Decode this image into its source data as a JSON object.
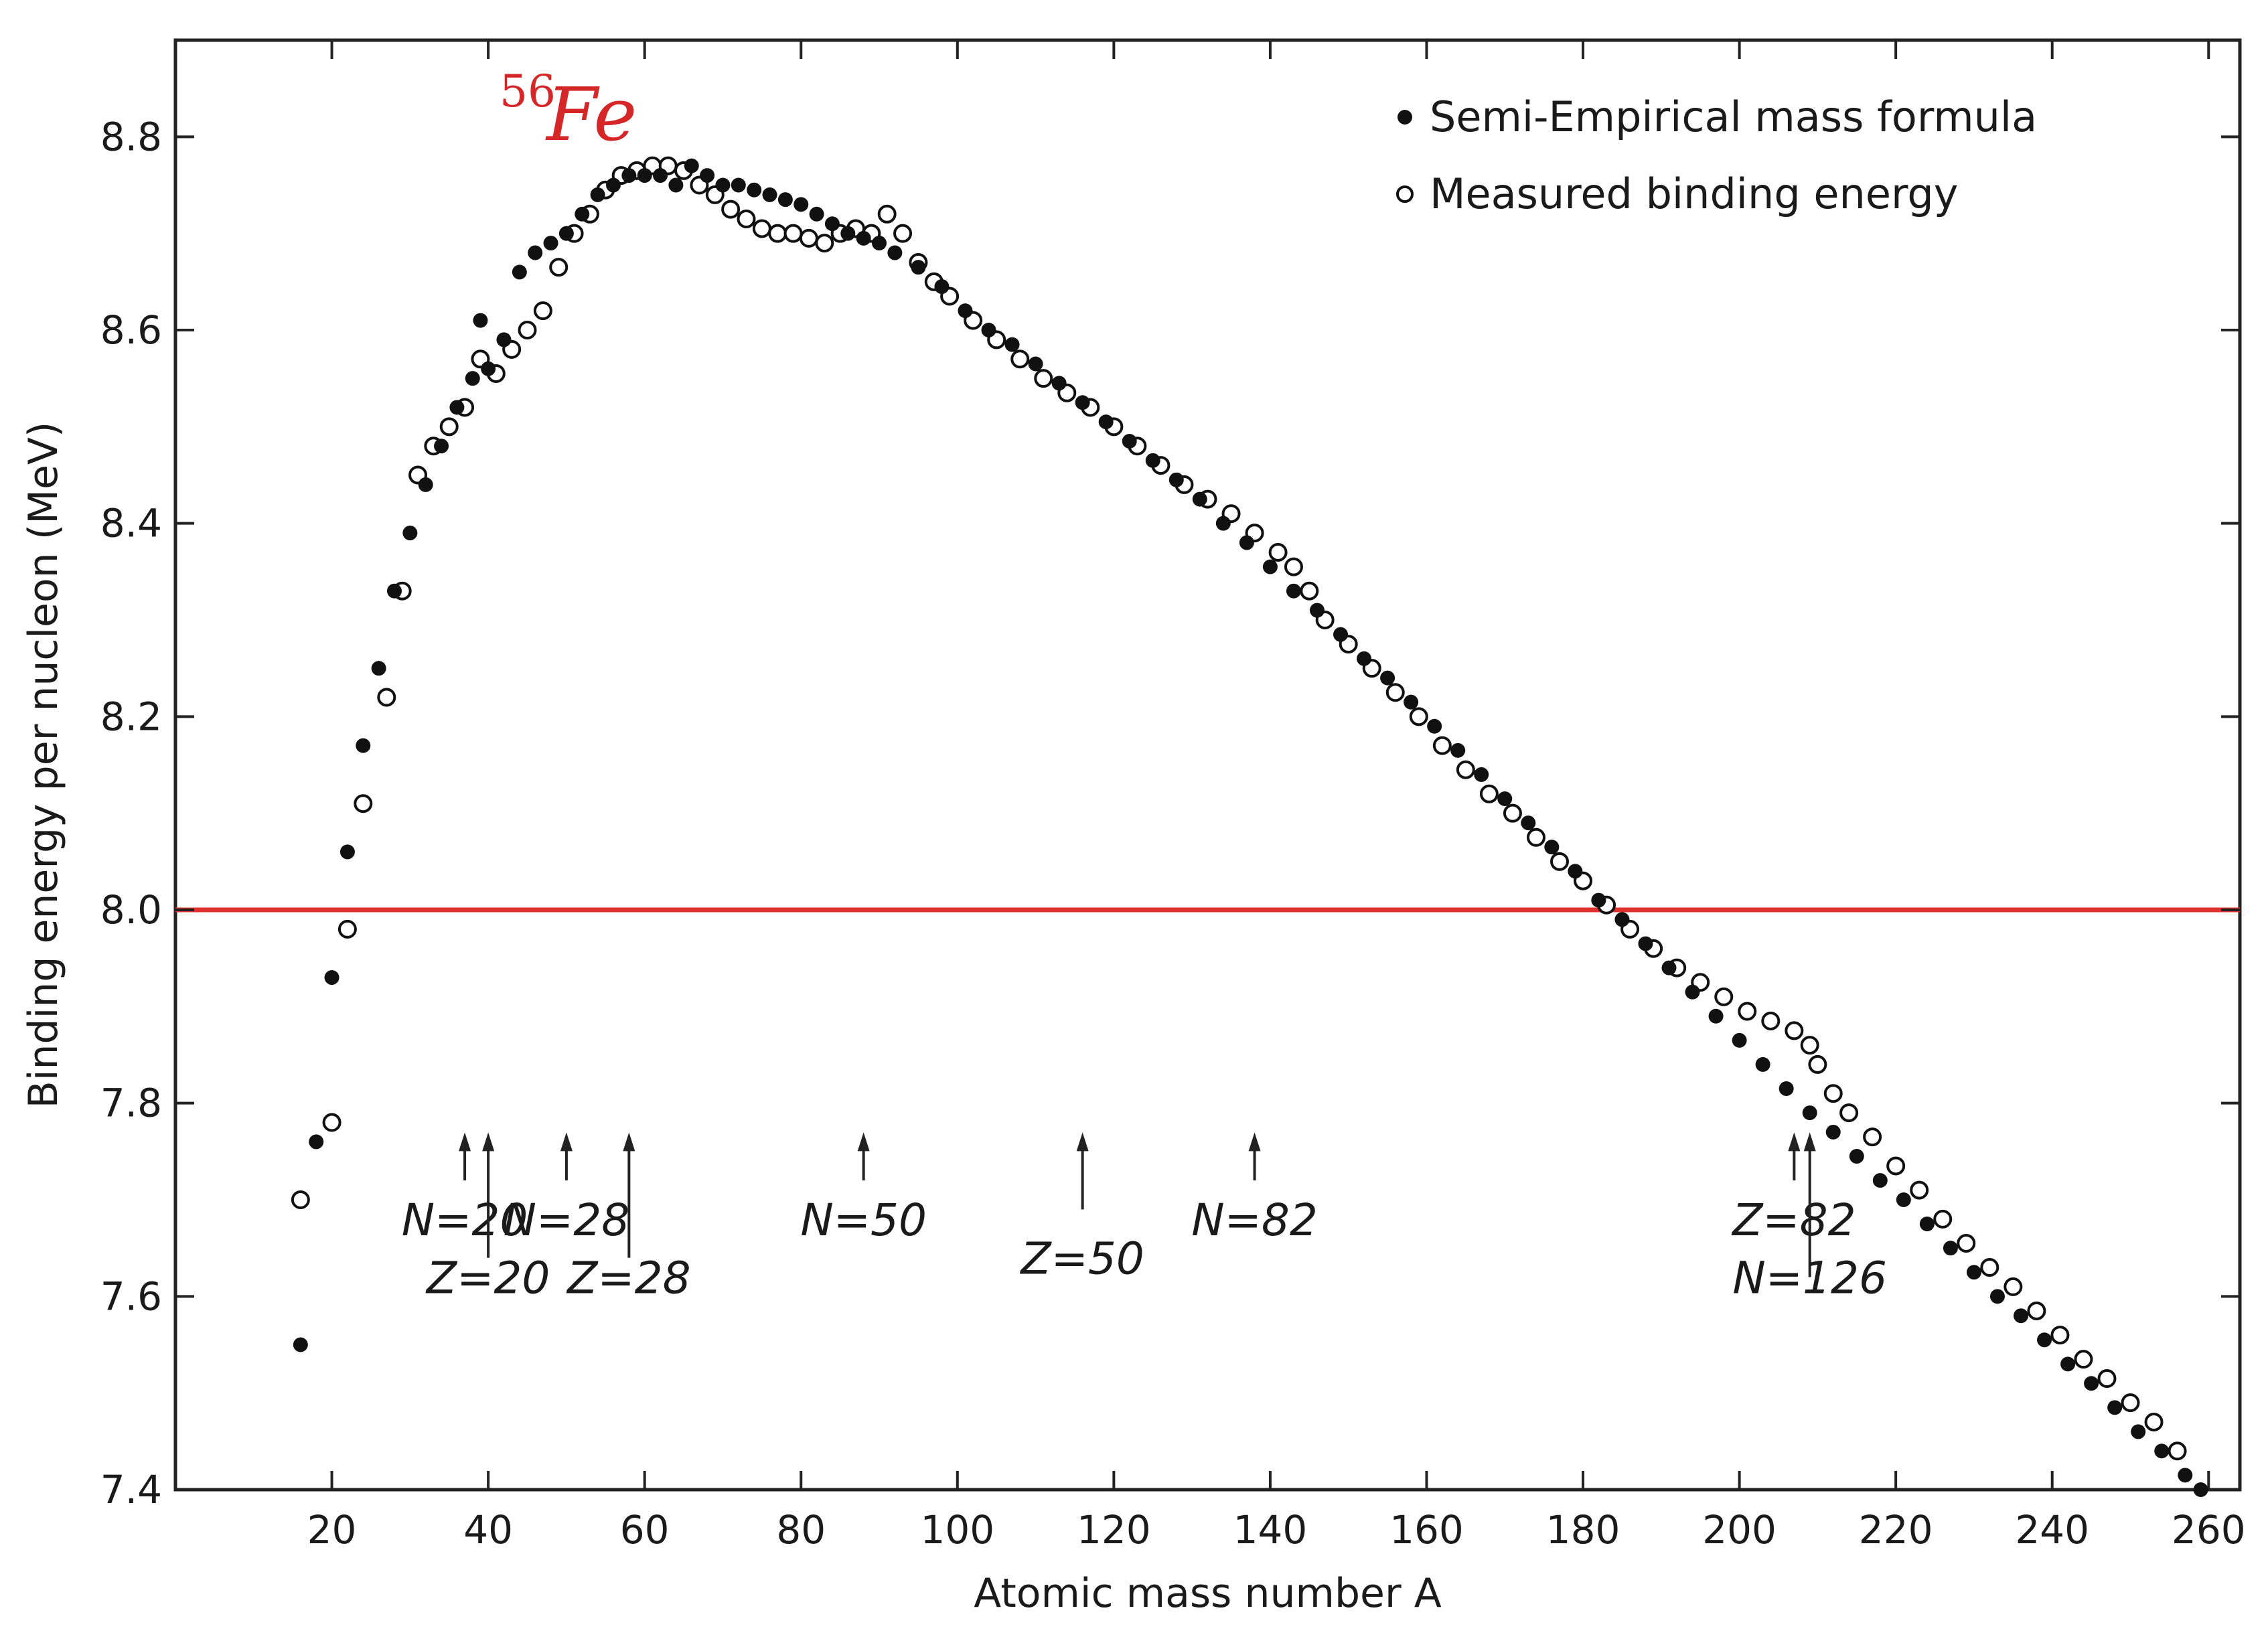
{
  "chart_data": {
    "type": "scatter",
    "title": "",
    "xlabel": "Atomic mass number A",
    "ylabel": "Binding energy per nucleon (MeV)",
    "xlim": [
      0,
      264
    ],
    "ylim": [
      7.4,
      8.9
    ],
    "x_ticks": [
      20,
      40,
      60,
      80,
      100,
      120,
      140,
      160,
      180,
      200,
      220,
      240,
      260
    ],
    "y_ticks": [
      7.4,
      7.6,
      7.8,
      8.0,
      8.2,
      8.4,
      8.6,
      8.8
    ],
    "grid": false,
    "legend_position": "top-right",
    "reference_line": {
      "y": 8.0,
      "color": "#e03030"
    },
    "annotation": {
      "mass_number": "56",
      "element": "Fe",
      "x": 56,
      "y": 8.79,
      "color": "#d62728"
    },
    "series": [
      {
        "name": "Semi-Empirical mass formula",
        "marker": "filled",
        "points": [
          [
            16,
            7.55
          ],
          [
            18,
            7.76
          ],
          [
            20,
            7.93
          ],
          [
            22,
            8.06
          ],
          [
            24,
            8.17
          ],
          [
            26,
            8.25
          ],
          [
            28,
            8.33
          ],
          [
            30,
            8.39
          ],
          [
            32,
            8.44
          ],
          [
            34,
            8.48
          ],
          [
            36,
            8.52
          ],
          [
            38,
            8.55
          ],
          [
            39,
            8.61
          ],
          [
            40,
            8.56
          ],
          [
            42,
            8.59
          ],
          [
            44,
            8.66
          ],
          [
            46,
            8.68
          ],
          [
            48,
            8.69
          ],
          [
            50,
            8.7
          ],
          [
            52,
            8.72
          ],
          [
            54,
            8.74
          ],
          [
            56,
            8.75
          ],
          [
            58,
            8.76
          ],
          [
            60,
            8.76
          ],
          [
            62,
            8.76
          ],
          [
            64,
            8.75
          ],
          [
            66,
            8.77
          ],
          [
            68,
            8.76
          ],
          [
            70,
            8.75
          ],
          [
            72,
            8.75
          ],
          [
            74,
            8.745
          ],
          [
            76,
            8.74
          ],
          [
            78,
            8.735
          ],
          [
            80,
            8.73
          ],
          [
            82,
            8.72
          ],
          [
            84,
            8.71
          ],
          [
            86,
            8.7
          ],
          [
            88,
            8.695
          ],
          [
            90,
            8.69
          ],
          [
            92,
            8.68
          ],
          [
            95,
            8.665
          ],
          [
            98,
            8.645
          ],
          [
            101,
            8.62
          ],
          [
            104,
            8.6
          ],
          [
            107,
            8.585
          ],
          [
            110,
            8.565
          ],
          [
            113,
            8.545
          ],
          [
            116,
            8.525
          ],
          [
            119,
            8.505
          ],
          [
            122,
            8.485
          ],
          [
            125,
            8.465
          ],
          [
            128,
            8.445
          ],
          [
            131,
            8.425
          ],
          [
            134,
            8.4
          ],
          [
            137,
            8.38
          ],
          [
            140,
            8.355
          ],
          [
            143,
            8.33
          ],
          [
            146,
            8.31
          ],
          [
            149,
            8.285
          ],
          [
            152,
            8.26
          ],
          [
            155,
            8.24
          ],
          [
            158,
            8.215
          ],
          [
            161,
            8.19
          ],
          [
            164,
            8.165
          ],
          [
            167,
            8.14
          ],
          [
            170,
            8.115
          ],
          [
            173,
            8.09
          ],
          [
            176,
            8.065
          ],
          [
            179,
            8.04
          ],
          [
            182,
            8.01
          ],
          [
            185,
            7.99
          ],
          [
            188,
            7.965
          ],
          [
            191,
            7.94
          ],
          [
            194,
            7.915
          ],
          [
            197,
            7.89
          ],
          [
            200,
            7.865
          ],
          [
            203,
            7.84
          ],
          [
            206,
            7.815
          ],
          [
            209,
            7.79
          ],
          [
            212,
            7.77
          ],
          [
            215,
            7.745
          ],
          [
            218,
            7.72
          ],
          [
            221,
            7.7
          ],
          [
            224,
            7.675
          ],
          [
            227,
            7.65
          ],
          [
            230,
            7.625
          ],
          [
            233,
            7.6
          ],
          [
            236,
            7.58
          ],
          [
            239,
            7.555
          ],
          [
            242,
            7.53
          ],
          [
            245,
            7.51
          ],
          [
            248,
            7.485
          ],
          [
            251,
            7.46
          ],
          [
            254,
            7.44
          ],
          [
            257,
            7.415
          ],
          [
            259,
            7.4
          ]
        ]
      },
      {
        "name": "Measured binding energy",
        "marker": "open",
        "points": [
          [
            16,
            7.7
          ],
          [
            20,
            7.78
          ],
          [
            22,
            7.98
          ],
          [
            24,
            8.11
          ],
          [
            27,
            8.22
          ],
          [
            29,
            8.33
          ],
          [
            31,
            8.45
          ],
          [
            33,
            8.48
          ],
          [
            35,
            8.5
          ],
          [
            37,
            8.52
          ],
          [
            39,
            8.57
          ],
          [
            41,
            8.555
          ],
          [
            43,
            8.58
          ],
          [
            45,
            8.6
          ],
          [
            47,
            8.62
          ],
          [
            49,
            8.665
          ],
          [
            51,
            8.7
          ],
          [
            53,
            8.72
          ],
          [
            55,
            8.745
          ],
          [
            57,
            8.76
          ],
          [
            59,
            8.765
          ],
          [
            61,
            8.77
          ],
          [
            63,
            8.77
          ],
          [
            65,
            8.765
          ],
          [
            67,
            8.75
          ],
          [
            69,
            8.74
          ],
          [
            71,
            8.725
          ],
          [
            73,
            8.715
          ],
          [
            75,
            8.705
          ],
          [
            77,
            8.7
          ],
          [
            79,
            8.7
          ],
          [
            81,
            8.695
          ],
          [
            83,
            8.69
          ],
          [
            85,
            8.7
          ],
          [
            87,
            8.705
          ],
          [
            89,
            8.7
          ],
          [
            91,
            8.72
          ],
          [
            93,
            8.7
          ],
          [
            95,
            8.67
          ],
          [
            97,
            8.65
          ],
          [
            99,
            8.635
          ],
          [
            102,
            8.61
          ],
          [
            105,
            8.59
          ],
          [
            108,
            8.57
          ],
          [
            111,
            8.55
          ],
          [
            114,
            8.535
          ],
          [
            117,
            8.52
          ],
          [
            120,
            8.5
          ],
          [
            123,
            8.48
          ],
          [
            126,
            8.46
          ],
          [
            129,
            8.44
          ],
          [
            132,
            8.425
          ],
          [
            135,
            8.41
          ],
          [
            138,
            8.39
          ],
          [
            141,
            8.37
          ],
          [
            143,
            8.355
          ],
          [
            145,
            8.33
          ],
          [
            147,
            8.3
          ],
          [
            150,
            8.275
          ],
          [
            153,
            8.25
          ],
          [
            156,
            8.225
          ],
          [
            159,
            8.2
          ],
          [
            162,
            8.17
          ],
          [
            165,
            8.145
          ],
          [
            168,
            8.12
          ],
          [
            171,
            8.1
          ],
          [
            174,
            8.075
          ],
          [
            177,
            8.05
          ],
          [
            180,
            8.03
          ],
          [
            183,
            8.005
          ],
          [
            186,
            7.98
          ],
          [
            189,
            7.96
          ],
          [
            192,
            7.94
          ],
          [
            195,
            7.925
          ],
          [
            198,
            7.91
          ],
          [
            201,
            7.895
          ],
          [
            204,
            7.885
          ],
          [
            207,
            7.875
          ],
          [
            209,
            7.86
          ],
          [
            210,
            7.84
          ],
          [
            212,
            7.81
          ],
          [
            214,
            7.79
          ],
          [
            217,
            7.765
          ],
          [
            220,
            7.735
          ],
          [
            223,
            7.71
          ],
          [
            226,
            7.68
          ],
          [
            229,
            7.655
          ],
          [
            232,
            7.63
          ],
          [
            235,
            7.61
          ],
          [
            238,
            7.585
          ],
          [
            241,
            7.56
          ],
          [
            244,
            7.535
          ],
          [
            247,
            7.515
          ],
          [
            250,
            7.49
          ],
          [
            253,
            7.47
          ],
          [
            256,
            7.44
          ]
        ]
      }
    ],
    "magic_numbers": [
      {
        "label": "N=20",
        "x": 37,
        "arrow_top": 7.76,
        "arrow_bottom": 7.72,
        "text_y": 7.68
      },
      {
        "label": "Z=20",
        "x": 40,
        "arrow_top": 7.76,
        "arrow_bottom": 7.64,
        "text_y": 7.62
      },
      {
        "label": "N=28",
        "x": 50,
        "arrow_top": 7.76,
        "arrow_bottom": 7.72,
        "text_y": 7.68
      },
      {
        "label": "Z=28",
        "x": 58,
        "arrow_top": 7.76,
        "arrow_bottom": 7.64,
        "text_y": 7.62
      },
      {
        "label": "N=50",
        "x": 88,
        "arrow_top": 7.76,
        "arrow_bottom": 7.72,
        "text_y": 7.68
      },
      {
        "label": "Z=50",
        "x": 116,
        "arrow_top": 7.76,
        "arrow_bottom": 7.69,
        "text_y": 7.64
      },
      {
        "label": "N=82",
        "x": 138,
        "arrow_top": 7.76,
        "arrow_bottom": 7.72,
        "text_y": 7.68
      },
      {
        "label": "Z=82",
        "x": 207,
        "arrow_top": 7.76,
        "arrow_bottom": 7.72,
        "text_y": 7.68
      },
      {
        "label": "N=126",
        "x": 209,
        "arrow_top": 7.76,
        "arrow_bottom": 7.62,
        "text_y": 7.62
      }
    ]
  }
}
